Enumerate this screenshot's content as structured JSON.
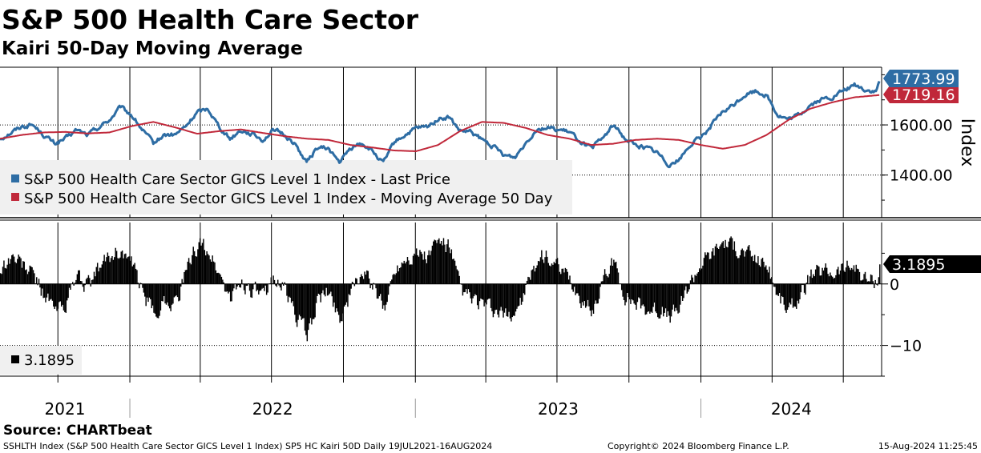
{
  "title": "S&P 500 Health Care Sector",
  "subtitle": "Kairi 50-Day Moving Average",
  "source": "Source: CHARTbeat",
  "footer": {
    "left": "SSHLTH Index (S&P 500 Health Care Sector GICS Level 1 Index) SP5 HC Kairi 50D  Daily 19JUL2021-16AUG2024",
    "center": "Copyright© 2024 Bloomberg Finance L.P.",
    "right": "15-Aug-2024 11:25:45"
  },
  "colors": {
    "price": "#2e6da4",
    "ma": "#c0283a",
    "kairi": "#000000",
    "grid": "#000000",
    "price_tag": "#2e6da4",
    "ma_tag": "#c0283a",
    "kairi_tag": "#000000"
  },
  "chart_data": [
    {
      "type": "line",
      "ylabel": "Index",
      "ylim": [
        1230,
        1830
      ],
      "y_ticks": [
        1400,
        1600
      ],
      "y_tick_labels": [
        "1400.00",
        "1600.00"
      ],
      "x_labels": [
        "2021",
        "2022",
        "2023",
        "2024"
      ],
      "legend_position": "bottom-left",
      "series": [
        {
          "name": "S&P 500 Health Care Sector GICS Level 1 Index - Last Price",
          "last_label": "1773.99",
          "x": [
            "2021-07-19",
            "2021-08-02",
            "2021-08-16",
            "2021-08-30",
            "2021-09-13",
            "2021-09-27",
            "2021-10-11",
            "2021-10-25",
            "2021-11-08",
            "2021-11-22",
            "2021-12-06",
            "2021-12-20",
            "2022-01-03",
            "2022-01-17",
            "2022-01-31",
            "2022-02-14",
            "2022-02-28",
            "2022-03-14",
            "2022-03-28",
            "2022-04-11",
            "2022-04-25",
            "2022-05-09",
            "2022-05-23",
            "2022-06-06",
            "2022-06-20",
            "2022-07-04",
            "2022-07-18",
            "2022-08-01",
            "2022-08-15",
            "2022-08-29",
            "2022-09-12",
            "2022-09-26",
            "2022-10-10",
            "2022-10-24",
            "2022-11-07",
            "2022-11-21",
            "2022-12-05",
            "2022-12-19",
            "2023-01-02",
            "2023-01-16",
            "2023-01-30",
            "2023-02-13",
            "2023-02-27",
            "2023-03-13",
            "2023-03-27",
            "2023-04-10",
            "2023-04-24",
            "2023-05-08",
            "2023-05-22",
            "2023-06-05",
            "2023-06-19",
            "2023-07-03",
            "2023-07-17",
            "2023-07-31",
            "2023-08-14",
            "2023-08-28",
            "2023-09-11",
            "2023-09-25",
            "2023-10-09",
            "2023-10-23",
            "2023-11-06",
            "2023-11-20",
            "2023-12-04",
            "2023-12-18",
            "2024-01-01",
            "2024-01-15",
            "2024-01-29",
            "2024-02-12",
            "2024-02-26",
            "2024-03-11",
            "2024-03-25",
            "2024-04-08",
            "2024-04-22",
            "2024-05-06",
            "2024-05-20",
            "2024-06-03",
            "2024-06-17",
            "2024-07-01",
            "2024-07-15",
            "2024-07-29",
            "2024-08-12",
            "2024-08-16"
          ],
          "values": [
            1545,
            1570,
            1595,
            1600,
            1560,
            1525,
            1545,
            1580,
            1560,
            1590,
            1620,
            1670,
            1640,
            1580,
            1525,
            1560,
            1560,
            1595,
            1650,
            1665,
            1595,
            1545,
            1580,
            1565,
            1540,
            1580,
            1560,
            1520,
            1450,
            1510,
            1505,
            1450,
            1505,
            1530,
            1495,
            1445,
            1530,
            1560,
            1585,
            1590,
            1625,
            1630,
            1575,
            1570,
            1540,
            1515,
            1480,
            1470,
            1530,
            1585,
            1590,
            1580,
            1570,
            1535,
            1505,
            1545,
            1600,
            1550,
            1520,
            1510,
            1490,
            1445,
            1460,
            1520,
            1550,
            1600,
            1650,
            1680,
            1720,
            1735,
            1720,
            1640,
            1620,
            1640,
            1680,
            1700,
            1710,
            1735,
            1760,
            1740,
            1730,
            1774
          ]
        },
        {
          "name": "S&P 500 Health Care Sector GICS Level 1 Index - Moving Average 50 Day",
          "last_label": "1719.16",
          "x": [
            "2021-07-19",
            "2021-08-16",
            "2021-09-13",
            "2021-10-11",
            "2021-11-08",
            "2021-12-06",
            "2022-01-03",
            "2022-01-31",
            "2022-02-28",
            "2022-03-28",
            "2022-04-25",
            "2022-05-23",
            "2022-06-20",
            "2022-07-18",
            "2022-08-15",
            "2022-09-12",
            "2022-10-10",
            "2022-11-07",
            "2022-12-05",
            "2023-01-02",
            "2023-01-30",
            "2023-02-27",
            "2023-03-27",
            "2023-04-24",
            "2023-05-22",
            "2023-06-19",
            "2023-07-17",
            "2023-08-14",
            "2023-09-11",
            "2023-10-09",
            "2023-11-06",
            "2023-12-04",
            "2024-01-01",
            "2024-01-29",
            "2024-02-26",
            "2024-03-25",
            "2024-04-22",
            "2024-05-20",
            "2024-06-17",
            "2024-07-15",
            "2024-08-16"
          ],
          "values": [
            1545,
            1560,
            1570,
            1572,
            1566,
            1570,
            1595,
            1612,
            1590,
            1565,
            1575,
            1582,
            1568,
            1555,
            1545,
            1540,
            1520,
            1510,
            1498,
            1495,
            1520,
            1575,
            1612,
            1608,
            1588,
            1560,
            1545,
            1520,
            1525,
            1540,
            1545,
            1540,
            1520,
            1505,
            1520,
            1560,
            1620,
            1665,
            1690,
            1710,
            1719
          ]
        }
      ]
    },
    {
      "type": "bar",
      "ylim": [
        -15,
        10
      ],
      "y_ticks": [
        0,
        -10
      ],
      "y_tick_labels": [
        "0",
        "−10"
      ],
      "series": [
        {
          "name": "",
          "last_label": "3.1895",
          "x": [
            "2021-07-19",
            "2021-08-02",
            "2021-08-16",
            "2021-08-30",
            "2021-09-13",
            "2021-09-27",
            "2021-10-11",
            "2021-10-25",
            "2021-11-08",
            "2021-11-22",
            "2021-12-06",
            "2021-12-20",
            "2022-01-03",
            "2022-01-17",
            "2022-01-31",
            "2022-02-14",
            "2022-02-28",
            "2022-03-14",
            "2022-03-28",
            "2022-04-11",
            "2022-04-25",
            "2022-05-09",
            "2022-05-23",
            "2022-06-06",
            "2022-06-20",
            "2022-07-04",
            "2022-07-18",
            "2022-08-01",
            "2022-08-15",
            "2022-08-29",
            "2022-09-12",
            "2022-09-26",
            "2022-10-10",
            "2022-10-24",
            "2022-11-07",
            "2022-11-21",
            "2022-12-05",
            "2022-12-19",
            "2023-01-02",
            "2023-01-16",
            "2023-01-30",
            "2023-02-13",
            "2023-02-27",
            "2023-03-13",
            "2023-03-27",
            "2023-04-10",
            "2023-04-24",
            "2023-05-08",
            "2023-05-22",
            "2023-06-05",
            "2023-06-19",
            "2023-07-03",
            "2023-07-17",
            "2023-07-31",
            "2023-08-14",
            "2023-08-28",
            "2023-09-11",
            "2023-09-25",
            "2023-10-09",
            "2023-10-23",
            "2023-11-06",
            "2023-11-20",
            "2023-12-04",
            "2023-12-18",
            "2024-01-01",
            "2024-01-15",
            "2024-01-29",
            "2024-02-12",
            "2024-02-26",
            "2024-03-11",
            "2024-03-25",
            "2024-04-08",
            "2024-04-22",
            "2024-05-06",
            "2024-05-20",
            "2024-06-03",
            "2024-06-17",
            "2024-07-01",
            "2024-07-15",
            "2024-07-29",
            "2024-08-12",
            "2024-08-16"
          ],
          "values": [
            2.5,
            4.5,
            3.2,
            1.5,
            -1.5,
            -4.5,
            -3.0,
            1.5,
            -0.5,
            2.5,
            4.5,
            5.5,
            3.0,
            -1.5,
            -5.0,
            -2.5,
            -3.0,
            2.0,
            6.5,
            5.5,
            1.5,
            -2.5,
            0.5,
            -1.0,
            -2.5,
            1.5,
            -1.0,
            -5.0,
            -8.5,
            -2.5,
            -1.5,
            -5.5,
            -1.5,
            2.0,
            -0.5,
            -4.5,
            2.5,
            4.5,
            5.0,
            4.5,
            7.0,
            6.0,
            -1.0,
            -2.5,
            -3.5,
            -4.5,
            -5.5,
            -4.5,
            -1.0,
            4.0,
            4.5,
            2.0,
            0.5,
            -2.5,
            -4.5,
            0.5,
            3.5,
            -1.5,
            -3.0,
            -4.0,
            -4.0,
            -5.5,
            -4.0,
            0.5,
            3.5,
            5.0,
            7.0,
            6.0,
            5.0,
            4.0,
            3.0,
            -2.0,
            -4.5,
            -2.0,
            1.0,
            2.0,
            2.0,
            2.5,
            3.0,
            0.8,
            0.5,
            3.19
          ]
        }
      ]
    }
  ]
}
